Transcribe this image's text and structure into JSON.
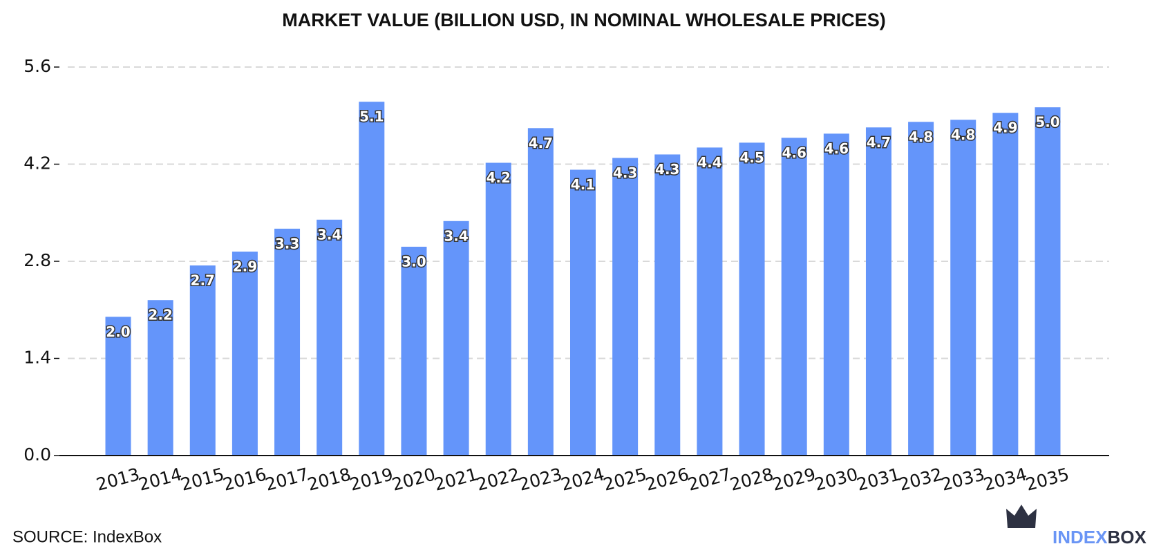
{
  "chart_data": {
    "type": "bar",
    "title": "MARKET VALUE (BILLION USD, IN NOMINAL WHOLESALE PRICES)",
    "categories": [
      "2013",
      "2014",
      "2015",
      "2016",
      "2017",
      "2018",
      "2019",
      "2020",
      "2021",
      "2022",
      "2023",
      "2024",
      "2025",
      "2026",
      "2027",
      "2028",
      "2029",
      "2030",
      "2031",
      "2032",
      "2033",
      "2034",
      "2035"
    ],
    "values": [
      2.0,
      2.24,
      2.74,
      2.94,
      3.27,
      3.4,
      5.1,
      3.01,
      3.38,
      4.22,
      4.72,
      4.12,
      4.29,
      4.34,
      4.44,
      4.51,
      4.58,
      4.64,
      4.73,
      4.81,
      4.84,
      4.94,
      5.02
    ],
    "value_labels": [
      "2.0",
      "2.2",
      "2.7",
      "2.9",
      "3.3",
      "3.4",
      "5.1",
      "3.0",
      "3.4",
      "4.2",
      "4.7",
      "4.1",
      "4.3",
      "4.3",
      "4.4",
      "4.5",
      "4.6",
      "4.6",
      "4.7",
      "4.8",
      "4.8",
      "4.9",
      "5.0"
    ],
    "color": "#6495fa",
    "ylim": [
      0,
      5.6
    ],
    "yticks": [
      {
        "value": 0,
        "label": "0.0"
      },
      1.4,
      2.8,
      4.2,
      5.6
    ],
    "grid": true,
    "source": "SOURCE: IndexBox",
    "brand": [
      "INDEX",
      "BOX"
    ]
  }
}
